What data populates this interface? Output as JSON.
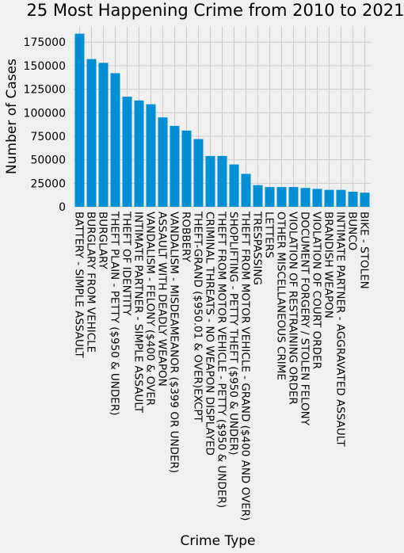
{
  "chart_data": {
    "type": "bar",
    "title": "25 Most Happening Crime from 2010 to 2021",
    "xlabel": "Crime Type",
    "ylabel": "Number of Cases",
    "ylim": [
      0,
      192000
    ],
    "yticks": [
      0,
      25000,
      50000,
      75000,
      100000,
      125000,
      150000,
      175000
    ],
    "grid": true,
    "bar_color": "#008fd5",
    "categories": [
      "BATTERY - SIMPLE ASSAULT",
      "BURGLARY FROM VEHICLE",
      "BURGLARY",
      "THEFT PLAIN - PETTY ($950 & UNDER)",
      "THEFT OF IDENTITY",
      "INTIMATE PARTNER - SIMPLE ASSAULT",
      "VANDALISM - FELONY ($400 & OVER",
      "ASSAULT WITH DEADLY WEAPON",
      "VANDALISM - MISDEAMEANOR ($399 OR UNDER)",
      "ROBBERY",
      "THEFT-GRAND ($950.01 & OVER)EXCPT",
      "CRIMINAL THREATS - NO WEAPON DISPLAYED",
      "THEFT FROM MOTOR VEHICLE - PETTY ($950 & UNDER)",
      "SHOPLIFTING - PETTY THEFT ($950 & UNDER)",
      "THEFT FROM MOTOR VEHICLE - GRAND ($400 AND OVER)",
      "TRESPASSING",
      "LETTERS",
      "OTHER MISCELLANEOUS CRIME",
      "VIOLATION OF RESTRAINING ORDER",
      "DOCUMENT FORGERY / STOLEN FELONY",
      "VIOLATION OF COURT ORDER",
      "BRANDISH WEAPON",
      "INTIMATE PARTNER - AGGRAVATED ASSAULT",
      "BUNCO",
      "BIKE - STOLEN"
    ],
    "values": [
      184000,
      157000,
      153000,
      142000,
      117000,
      113000,
      109000,
      95000,
      86000,
      81000,
      72000,
      54000,
      54000,
      45000,
      35000,
      23000,
      21000,
      21000,
      21000,
      20000,
      19000,
      18000,
      18000,
      16000,
      15000
    ]
  }
}
